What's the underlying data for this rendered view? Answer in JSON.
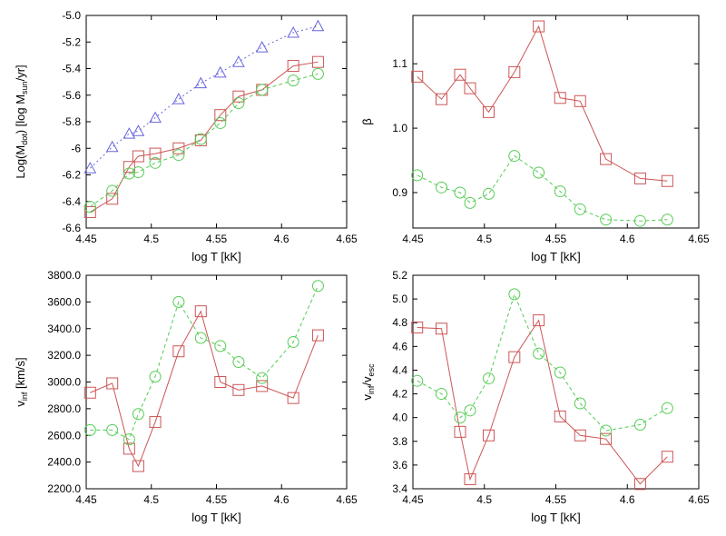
{
  "chart_data": [
    {
      "type": "line",
      "xlabel": "log T [kK]",
      "ylabel": "Log(M",
      "ylabel_sub": "dot",
      "ylabel_mid": ") [log M",
      "ylabel_sub2": "sun",
      "ylabel_end": "/yr]",
      "xlim": [
        4.45,
        4.65
      ],
      "ylim": [
        -6.6,
        -5.0
      ],
      "xticks": [
        "4.45",
        "4.5",
        "4.55",
        "4.6",
        "4.65"
      ],
      "yticks": [
        "-6.6",
        "-6.4",
        "-6.2",
        "-6",
        "-5.8",
        "-5.6",
        "-5.4",
        "-5.2",
        "-5.0"
      ],
      "series": [
        {
          "color": "#6666dd",
          "marker": "triangle",
          "dash": "2,3",
          "x": [
            4.453,
            4.47,
            4.483,
            4.49,
            4.503,
            4.521,
            4.538,
            4.553,
            4.567,
            4.585,
            4.609,
            4.628
          ],
          "y": [
            -6.15,
            -5.99,
            -5.89,
            -5.87,
            -5.77,
            -5.63,
            -5.51,
            -5.43,
            -5.35,
            -5.24,
            -5.13,
            -5.08
          ]
        },
        {
          "color": "#cc5555",
          "marker": "square",
          "dash": "",
          "x": [
            4.453,
            4.47,
            4.483,
            4.49,
            4.503,
            4.521,
            4.538,
            4.553,
            4.567,
            4.585,
            4.609,
            4.628
          ],
          "y": [
            -6.48,
            -6.38,
            -6.14,
            -6.06,
            -6.04,
            -6.0,
            -5.94,
            -5.75,
            -5.61,
            -5.56,
            -5.38,
            -5.35
          ]
        },
        {
          "color": "#55cc55",
          "marker": "circle",
          "dash": "4,3",
          "x": [
            4.453,
            4.47,
            4.483,
            4.49,
            4.503,
            4.521,
            4.538,
            4.553,
            4.567,
            4.585,
            4.609,
            4.628
          ],
          "y": [
            -6.44,
            -6.32,
            -6.19,
            -6.18,
            -6.11,
            -6.05,
            -5.93,
            -5.81,
            -5.66,
            -5.56,
            -5.49,
            -5.44
          ]
        }
      ]
    },
    {
      "type": "line",
      "xlabel": "log T [kK]",
      "ylabel": "β",
      "xlim": [
        4.45,
        4.65
      ],
      "ylim": [
        0.845,
        1.175
      ],
      "xticks": [
        "4.45",
        "4.5",
        "4.55",
        "4.6",
        "4.65"
      ],
      "yticks": [
        "0.9",
        "1.0",
        "1.1"
      ],
      "ytick_values": [
        0.9,
        1.0,
        1.1
      ],
      "series": [
        {
          "color": "#cc5555",
          "marker": "square",
          "dash": "",
          "x": [
            4.453,
            4.47,
            4.483,
            4.49,
            4.503,
            4.521,
            4.538,
            4.553,
            4.567,
            4.585,
            4.609,
            4.628
          ],
          "y": [
            1.08,
            1.045,
            1.083,
            1.062,
            1.025,
            1.087,
            1.158,
            1.047,
            1.042,
            0.952,
            0.922,
            0.918
          ]
        },
        {
          "color": "#55cc55",
          "marker": "circle",
          "dash": "4,3",
          "x": [
            4.453,
            4.47,
            4.483,
            4.49,
            4.503,
            4.521,
            4.538,
            4.553,
            4.567,
            4.585,
            4.609,
            4.628
          ],
          "y": [
            0.927,
            0.908,
            0.9,
            0.884,
            0.898,
            0.957,
            0.931,
            0.902,
            0.874,
            0.858,
            0.856,
            0.858
          ]
        }
      ]
    },
    {
      "type": "line",
      "xlabel": "log T [kK]",
      "ylabel": "v",
      "ylabel_sub": "inf",
      "ylabel_end": " [km/s]",
      "xlim": [
        4.45,
        4.65
      ],
      "ylim": [
        2200,
        3800
      ],
      "xticks": [
        "4.45",
        "4.5",
        "4.55",
        "4.6",
        "4.65"
      ],
      "yticks": [
        "2200.0",
        "2400.0",
        "2600.0",
        "2800.0",
        "3000.0",
        "3200.0",
        "3400.0",
        "3600.0",
        "3800.0"
      ],
      "series": [
        {
          "color": "#cc5555",
          "marker": "square",
          "dash": "",
          "x": [
            4.453,
            4.47,
            4.483,
            4.49,
            4.503,
            4.521,
            4.538,
            4.553,
            4.567,
            4.585,
            4.609,
            4.628
          ],
          "y": [
            2920,
            2990,
            2500,
            2370,
            2700,
            3230,
            3530,
            3000,
            2940,
            2970,
            2880,
            3350
          ]
        },
        {
          "color": "#55cc55",
          "marker": "circle",
          "dash": "4,3",
          "x": [
            4.453,
            4.47,
            4.483,
            4.49,
            4.503,
            4.521,
            4.538,
            4.553,
            4.567,
            4.585,
            4.609,
            4.628
          ],
          "y": [
            2640,
            2640,
            2570,
            2760,
            3040,
            3600,
            3330,
            3270,
            3150,
            3030,
            3300,
            3720
          ]
        }
      ]
    },
    {
      "type": "line",
      "xlabel": "log T [kK]",
      "ylabel": "v",
      "ylabel_sub": "inf",
      "ylabel_mid": "/v",
      "ylabel_sub2": "esc",
      "xlim": [
        4.45,
        4.65
      ],
      "ylim": [
        3.4,
        5.2
      ],
      "xticks": [
        "4.45",
        "4.5",
        "4.55",
        "4.6",
        "4.65"
      ],
      "yticks": [
        "3.4",
        "3.6",
        "3.8",
        "4.0",
        "4.2",
        "4.4",
        "4.6",
        "4.8",
        "5.0",
        "5.2"
      ],
      "series": [
        {
          "color": "#cc5555",
          "marker": "square",
          "dash": "",
          "x": [
            4.453,
            4.47,
            4.483,
            4.49,
            4.503,
            4.521,
            4.538,
            4.553,
            4.567,
            4.585,
            4.609,
            4.628
          ],
          "y": [
            4.76,
            4.75,
            3.88,
            3.48,
            3.85,
            4.51,
            4.82,
            4.01,
            3.85,
            3.82,
            3.44,
            3.67
          ]
        },
        {
          "color": "#55cc55",
          "marker": "circle",
          "dash": "4,3",
          "x": [
            4.453,
            4.47,
            4.483,
            4.49,
            4.503,
            4.521,
            4.538,
            4.553,
            4.567,
            4.585,
            4.609,
            4.628
          ],
          "y": [
            4.31,
            4.2,
            4.0,
            4.06,
            4.33,
            5.04,
            4.54,
            4.38,
            4.12,
            3.89,
            3.94,
            4.08
          ]
        }
      ]
    }
  ]
}
